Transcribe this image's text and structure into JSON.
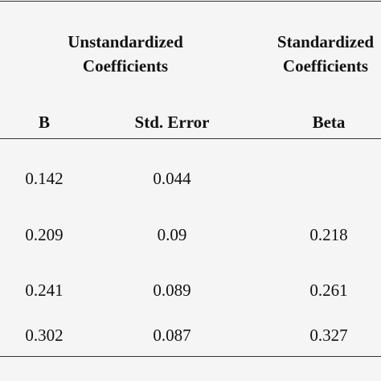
{
  "header": {
    "groups": [
      "Unstandardized Coefficients",
      "Standardized Coefficients"
    ],
    "columns": [
      "B",
      "Std. Error",
      "Beta"
    ]
  },
  "table": {
    "rows": [
      [
        "0.142",
        "0.044"
      ],
      [
        "0.209",
        "0.09",
        "0.218"
      ],
      [
        "0.241",
        "0.089",
        "0.261"
      ],
      [
        "0.302",
        "0.087",
        "0.327"
      ]
    ]
  }
}
